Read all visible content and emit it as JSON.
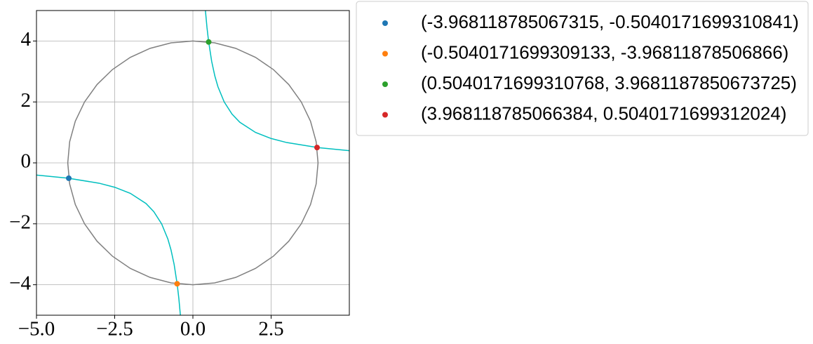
{
  "chart_data": {
    "type": "scatter",
    "xlim": [
      -5,
      5
    ],
    "ylim": [
      -5,
      5
    ],
    "grid": true,
    "xticks": [
      {
        "value": -5,
        "label": "−5.0"
      },
      {
        "value": -2.5,
        "label": "−2.5"
      },
      {
        "value": 0,
        "label": "0.0"
      },
      {
        "value": 2.5,
        "label": "2.5"
      }
    ],
    "yticks": [
      {
        "value": -4,
        "label": "−4"
      },
      {
        "value": -2,
        "label": "−2"
      },
      0,
      2,
      4
    ],
    "curves": [
      {
        "color": "#808080",
        "x": [
          4,
          3.939,
          3.759,
          3.464,
          3.064,
          2.571,
          2,
          1.368,
          0.695,
          0,
          -0.695,
          -1.368,
          -2,
          -2.571,
          -3.064,
          -3.464,
          -3.759,
          -3.939,
          -4,
          -3.939,
          -3.759,
          -3.464,
          -3.064,
          -2.571,
          -2,
          -1.368,
          -0.695,
          0,
          0.695,
          1.368,
          2,
          2.571,
          3.064,
          3.464,
          3.759,
          3.939,
          4
        ],
        "y": [
          0,
          0.695,
          1.368,
          2,
          2.571,
          3.064,
          3.464,
          3.759,
          3.939,
          4,
          3.939,
          3.759,
          3.464,
          3.064,
          2.571,
          2,
          1.368,
          0.695,
          0,
          -0.695,
          -1.368,
          -2,
          -2.571,
          -3.064,
          -3.464,
          -3.759,
          -3.939,
          -4,
          -3.939,
          -3.759,
          -3.464,
          -3.064,
          -2.571,
          -2,
          -1.368,
          -0.695,
          0
        ]
      },
      {
        "color": "#00bfbf",
        "x": [
          -5,
          -4,
          -3,
          -2.5,
          -2,
          -1.5,
          -1.25,
          -1,
          -0.8,
          -0.7,
          -0.6,
          -0.5,
          -0.45,
          -0.4,
          null,
          0.4,
          0.45,
          0.5,
          0.6,
          0.7,
          0.8,
          1,
          1.25,
          1.5,
          2,
          2.5,
          3,
          4,
          5
        ],
        "y": [
          -0.4,
          -0.5,
          -0.667,
          -0.8,
          -1,
          -1.333,
          -1.6,
          -2,
          -2.5,
          -2.857,
          -3.333,
          -4,
          -4.444,
          -5,
          null,
          5,
          4.444,
          4,
          3.333,
          2.857,
          2.5,
          2,
          1.6,
          1.333,
          1,
          0.8,
          0.667,
          0.5,
          0.4
        ]
      }
    ],
    "series": [
      {
        "name": "(-3.968118785067315, -0.5040171699310841)",
        "color": "#1f77b4",
        "x": [
          -3.968118785067315
        ],
        "values": [
          -0.5040171699310841
        ]
      },
      {
        "name": "(-0.5040171699309133, -3.96811878506866)",
        "color": "#ff7f0e",
        "x": [
          -0.5040171699309133
        ],
        "values": [
          -3.96811878506866
        ]
      },
      {
        "name": "(0.5040171699310768, 3.9681187850673725)",
        "color": "#2ca02c",
        "x": [
          0.5040171699310768
        ],
        "values": [
          3.9681187850673725
        ]
      },
      {
        "name": "(3.968118785066384, 0.5040171699312024)",
        "color": "#d62728",
        "x": [
          3.968118785066384
        ],
        "values": [
          0.5040171699312024
        ]
      }
    ]
  }
}
